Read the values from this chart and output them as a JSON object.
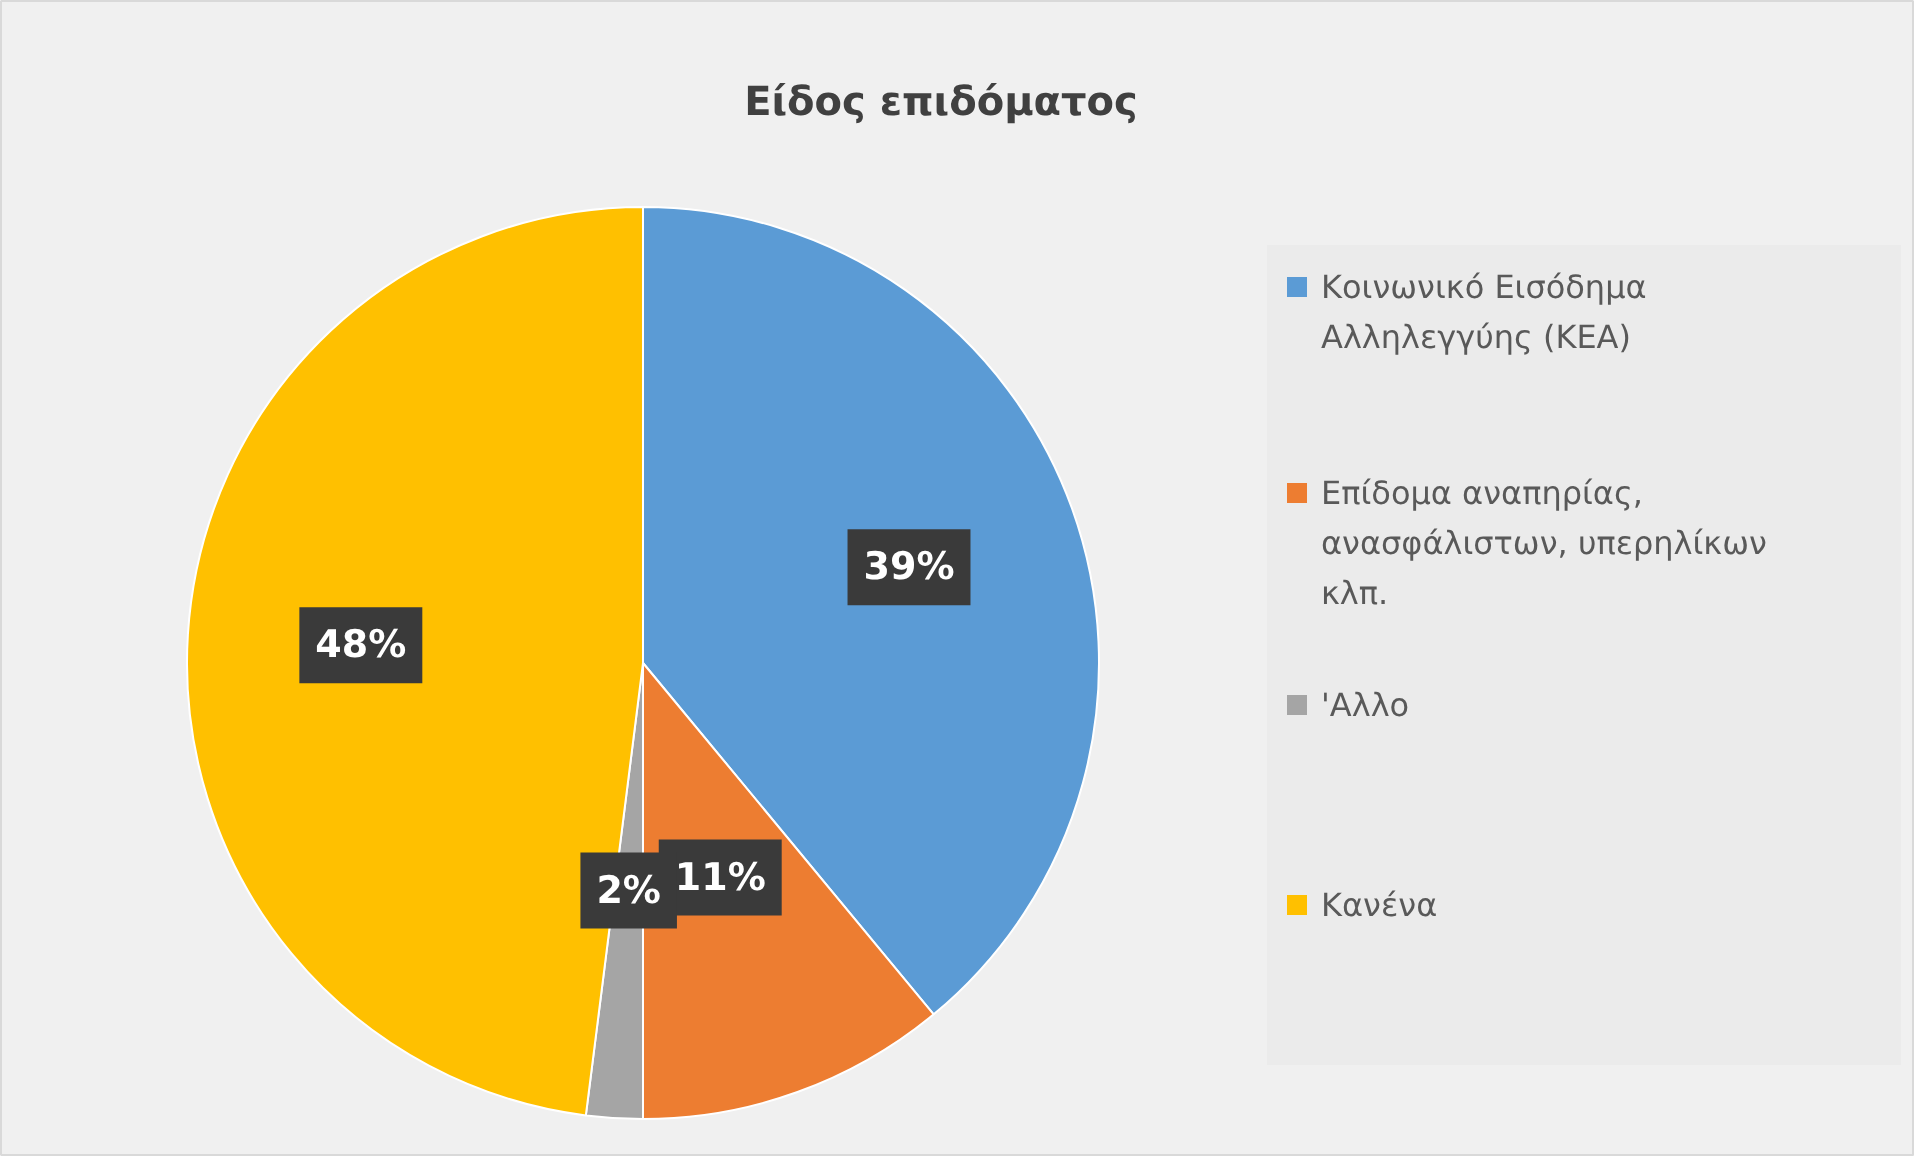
{
  "chart_data": {
    "type": "pie",
    "title": "Είδος επιδόματος",
    "categories": [
      "Κοινωνικό Εισόδημα Αλληλεγγύης (ΚΕΑ)",
      "Επίδομα αναπηρίας, ανασφάλιστων, υπερηλίκων κλπ.",
      "'Αλλο",
      "Κανένα"
    ],
    "values": [
      39,
      11,
      2,
      48
    ],
    "colors": [
      "#5b9bd5",
      "#ed7d31",
      "#a5a5a5",
      "#ffc000"
    ],
    "value_labels": [
      "39%",
      "11%",
      "2%",
      "48%"
    ],
    "legend": "right"
  }
}
